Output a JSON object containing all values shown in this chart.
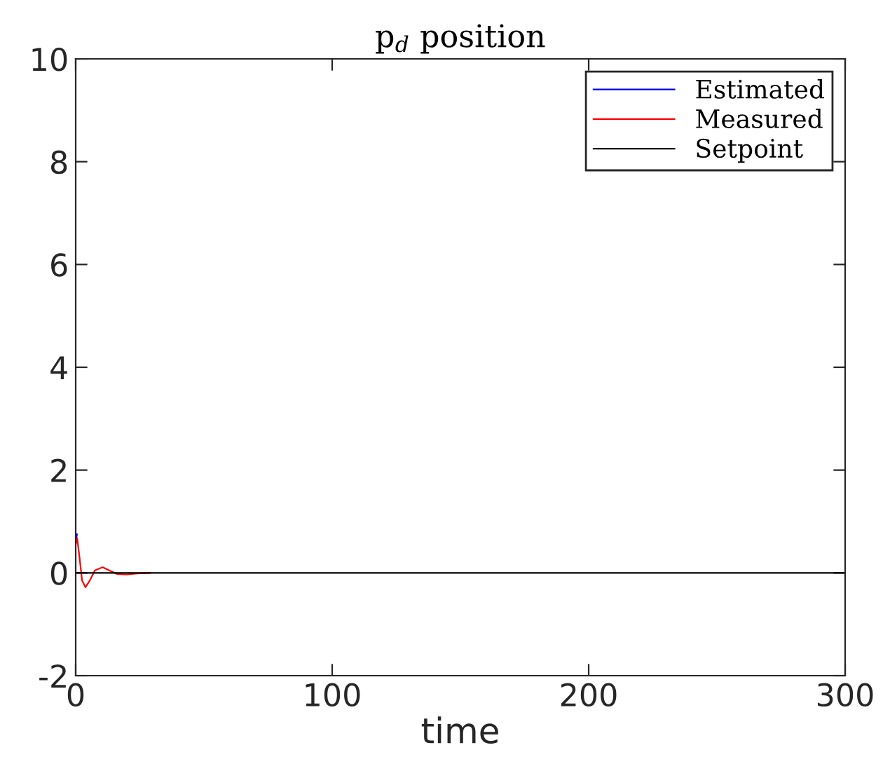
{
  "chart_data": {
    "type": "line",
    "title": "p$_{d}$ position",
    "xlabel": "time",
    "xlim": [
      0,
      300
    ],
    "xticks": [
      0,
      100,
      200,
      300
    ],
    "ylim": [
      -2,
      10
    ],
    "yticks": [
      {
        "value": -2,
        "label": "-2"
      },
      0,
      2,
      4,
      6,
      8,
      10
    ],
    "grid": false,
    "legend": "top right",
    "marker": "none",
    "line_style": "solid",
    "series": [
      {
        "name": "Estimated",
        "color": "#0000ff",
        "x": [
          0,
          0.5
        ],
        "values": [
          0.6,
          0.75
        ]
      },
      {
        "name": "Measured",
        "color": "#ff0000",
        "x": [
          0,
          0.6,
          1.5,
          2.5,
          3.8,
          5.5,
          7.5,
          10.5,
          13.5,
          16,
          19.7,
          24,
          29
        ],
        "values": [
          0.55,
          0.67,
          0.3,
          -0.15,
          -0.28,
          -0.15,
          0.05,
          0.11,
          0.04,
          -0.02,
          -0.03,
          -0.01,
          0
        ]
      },
      {
        "name": "Setpoint",
        "color": "#000000",
        "x": [
          0,
          300
        ],
        "values": [
          0,
          0
        ]
      }
    ]
  }
}
